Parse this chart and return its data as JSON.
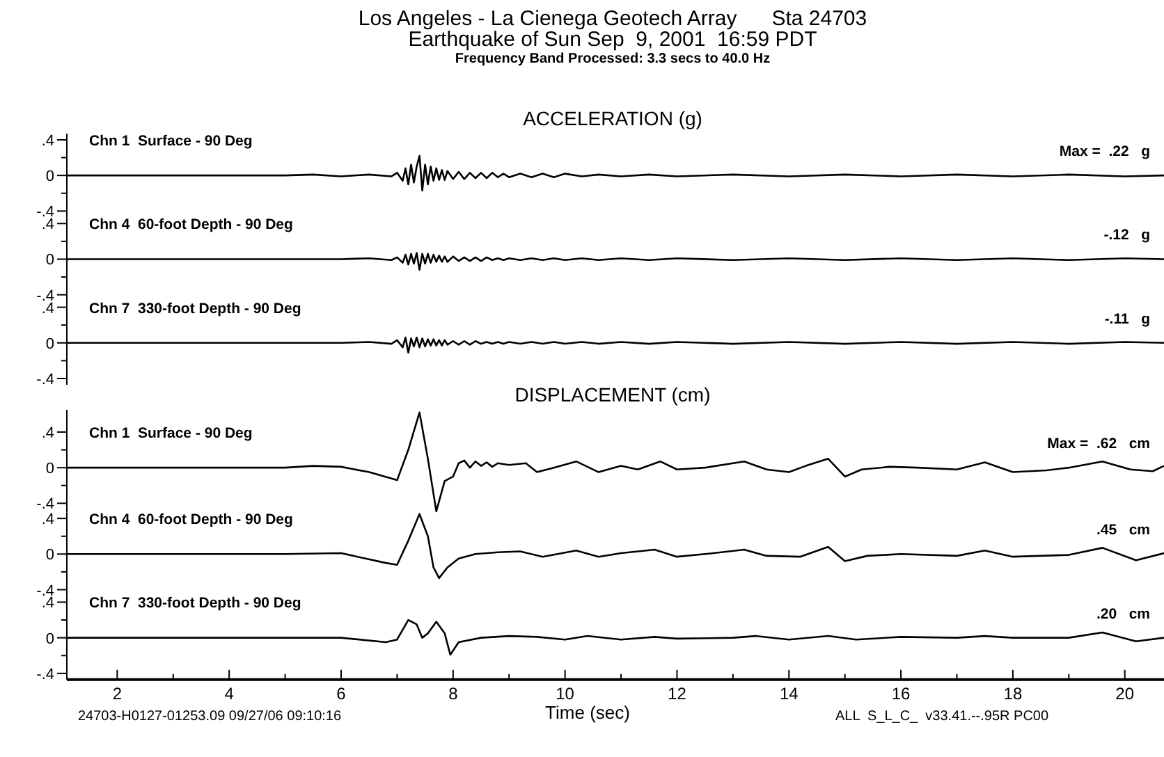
{
  "chart_data": [
    {
      "type": "line",
      "title": "Chn 1  Surface - 90 Deg",
      "subtitle": "ACCELERATION (g)",
      "annotations": [
        "Los Angeles - La Cienega Geotech Array      Sta 24703",
        "Earthquake of Sun Sep  9, 2001  16:59 PDT",
        "Frequency Band Processed: 3.3 secs to 40.0 Hz",
        "Max =  .22   g"
      ],
      "tick_labels": "y",
      "xlim": [
        1.1,
        20.7
      ],
      "ylim": [
        -0.47,
        0.47
      ],
      "yticks": [
        {
          "value": 0.4,
          "label": ".4"
        },
        {
          "value": 0.2,
          "label": null
        },
        {
          "value": 0,
          "label": "0"
        },
        {
          "value": -0.2,
          "label": null
        },
        {
          "value": -0.4,
          "label": "-.4"
        }
      ],
      "x": [
        1.1,
        5.0,
        5.5,
        6.0,
        6.5,
        6.9,
        7.0,
        7.1,
        7.15,
        7.2,
        7.25,
        7.3,
        7.35,
        7.4,
        7.45,
        7.5,
        7.55,
        7.6,
        7.65,
        7.7,
        7.75,
        7.8,
        7.85,
        7.9,
        8.0,
        8.1,
        8.2,
        8.3,
        8.4,
        8.5,
        8.6,
        8.7,
        8.8,
        8.9,
        9.0,
        9.2,
        9.4,
        9.6,
        9.8,
        10.0,
        10.3,
        10.6,
        11,
        11.5,
        12,
        13,
        14,
        15,
        16,
        17,
        18,
        19,
        20,
        20.7
      ],
      "series": [
        {
          "color": "#000000",
          "values": [
            0,
            0,
            0.01,
            -0.01,
            0.01,
            -0.01,
            0.03,
            -0.06,
            0.08,
            -0.1,
            0.12,
            -0.08,
            0.1,
            0.22,
            -0.17,
            0.12,
            -0.1,
            0.1,
            -0.06,
            0.08,
            -0.05,
            0.06,
            -0.05,
            0.05,
            -0.04,
            0.04,
            -0.04,
            0.03,
            -0.03,
            0.03,
            -0.03,
            0.03,
            -0.02,
            0.02,
            -0.02,
            0.02,
            -0.02,
            0.02,
            -0.02,
            0.02,
            -0.01,
            0.01,
            -0.01,
            0.01,
            -0.01,
            0.01,
            -0.01,
            0.01,
            -0.01,
            0.01,
            -0.01,
            0.01,
            -0.01,
            0
          ]
        }
      ]
    },
    {
      "type": "line",
      "title": "Chn 4  60-foot Depth - 90 Deg",
      "annotations": [
        "-.12   g"
      ],
      "tick_labels": "y",
      "xlim": [
        1.1,
        20.7
      ],
      "ylim": [
        -0.47,
        0.47
      ],
      "yticks": [
        {
          "value": 0.4,
          "label": ".4"
        },
        {
          "value": 0.2,
          "label": null
        },
        {
          "value": 0,
          "label": "0"
        },
        {
          "value": -0.2,
          "label": null
        },
        {
          "value": -0.4,
          "label": "-.4"
        }
      ],
      "x": [
        1.1,
        5.0,
        5.5,
        6.0,
        6.5,
        6.9,
        7.0,
        7.1,
        7.15,
        7.2,
        7.25,
        7.3,
        7.35,
        7.4,
        7.45,
        7.5,
        7.55,
        7.6,
        7.65,
        7.7,
        7.75,
        7.8,
        7.85,
        7.9,
        8.0,
        8.1,
        8.2,
        8.3,
        8.4,
        8.5,
        8.6,
        8.7,
        8.8,
        8.9,
        9.0,
        9.2,
        9.4,
        9.6,
        9.8,
        10.0,
        10.3,
        10.6,
        11,
        11.5,
        12,
        13,
        14,
        15,
        16,
        17,
        18,
        19,
        20,
        20.7
      ],
      "series": [
        {
          "color": "#000000",
          "values": [
            0,
            0,
            0,
            0,
            0.01,
            -0.01,
            0.02,
            -0.04,
            0.05,
            -0.06,
            0.06,
            -0.05,
            0.07,
            -0.12,
            0.06,
            -0.05,
            0.06,
            -0.04,
            0.05,
            -0.03,
            0.04,
            -0.03,
            0.03,
            -0.03,
            0.03,
            -0.02,
            0.02,
            -0.02,
            0.02,
            -0.02,
            0.02,
            -0.01,
            0.01,
            -0.01,
            0.01,
            -0.01,
            0.01,
            -0.01,
            0.01,
            -0.01,
            0.01,
            -0.01,
            0.01,
            -0.01,
            0.01,
            -0.01,
            0.01,
            -0.01,
            0.01,
            -0.01,
            0.01,
            -0.01,
            0.01,
            0
          ]
        }
      ]
    },
    {
      "type": "line",
      "title": "Chn 7  330-foot Depth - 90 Deg",
      "annotations": [
        "-.11   g"
      ],
      "tick_labels": "y",
      "xlim": [
        1.1,
        20.7
      ],
      "ylim": [
        -0.47,
        0.47
      ],
      "yticks": [
        {
          "value": 0.4,
          "label": ".4"
        },
        {
          "value": 0.2,
          "label": null
        },
        {
          "value": 0,
          "label": "0"
        },
        {
          "value": -0.2,
          "label": null
        },
        {
          "value": -0.4,
          "label": "-.4"
        }
      ],
      "x": [
        1.1,
        5.0,
        5.5,
        6.0,
        6.5,
        6.9,
        7.0,
        7.1,
        7.15,
        7.2,
        7.25,
        7.3,
        7.35,
        7.4,
        7.45,
        7.5,
        7.55,
        7.6,
        7.65,
        7.7,
        7.75,
        7.8,
        7.85,
        7.9,
        8.0,
        8.1,
        8.2,
        8.3,
        8.4,
        8.5,
        8.6,
        8.7,
        8.8,
        8.9,
        9.0,
        9.2,
        9.4,
        9.6,
        9.8,
        10.0,
        10.3,
        10.6,
        11,
        11.5,
        12,
        13,
        14,
        15,
        16,
        17,
        18,
        19,
        20,
        20.7
      ],
      "series": [
        {
          "color": "#000000",
          "values": [
            0,
            0,
            0,
            0,
            0.01,
            -0.01,
            0.03,
            -0.05,
            0.06,
            -0.11,
            0.05,
            -0.04,
            0.06,
            -0.05,
            0.05,
            -0.04,
            0.04,
            -0.03,
            0.04,
            -0.03,
            0.03,
            -0.03,
            0.03,
            -0.02,
            0.02,
            -0.02,
            0.02,
            -0.02,
            0.02,
            -0.01,
            0.01,
            -0.01,
            0.01,
            -0.01,
            0.01,
            -0.01,
            0.01,
            -0.01,
            0.01,
            -0.01,
            0.01,
            -0.01,
            0.01,
            -0.01,
            0.01,
            -0.01,
            0.01,
            -0.01,
            0.01,
            -0.01,
            0.01,
            -0.01,
            0.01,
            0
          ]
        }
      ]
    },
    {
      "type": "line",
      "title": "Chn 1  Surface - 90 Deg",
      "subtitle": "DISPLACEMENT (cm)",
      "annotations": [
        "Max =  .62   cm"
      ],
      "tick_labels": "y",
      "xlim": [
        1.1,
        20.7
      ],
      "ylim": [
        -0.5,
        0.65
      ],
      "yticks": [
        {
          "value": 0.4,
          "label": ".4"
        },
        {
          "value": 0.2,
          "label": null
        },
        {
          "value": 0,
          "label": "0"
        },
        {
          "value": -0.2,
          "label": null
        },
        {
          "value": -0.4,
          "label": "-.4"
        }
      ],
      "x": [
        1.1,
        5.0,
        5.5,
        6.0,
        6.5,
        7.0,
        7.2,
        7.4,
        7.55,
        7.7,
        7.85,
        8.0,
        8.1,
        8.2,
        8.3,
        8.4,
        8.5,
        8.6,
        8.7,
        8.8,
        9.0,
        9.3,
        9.5,
        9.8,
        10.2,
        10.6,
        11,
        11.3,
        11.7,
        12,
        12.5,
        13.2,
        13.6,
        14,
        14.3,
        14.7,
        15.0,
        15.3,
        15.8,
        16.3,
        17,
        17.5,
        18.0,
        18.6,
        19.0,
        19.6,
        20.1,
        20.5,
        20.7
      ],
      "series": [
        {
          "color": "#000000",
          "values": [
            0,
            0,
            0.02,
            0.01,
            -0.05,
            -0.14,
            0.2,
            0.62,
            0.1,
            -0.49,
            -0.15,
            -0.1,
            0.05,
            0.08,
            0,
            0.07,
            0.02,
            0.06,
            0.01,
            0.05,
            0.03,
            0.05,
            -0.05,
            0,
            0.07,
            -0.05,
            0.02,
            -0.02,
            0.07,
            -0.02,
            0,
            0.07,
            -0.02,
            -0.05,
            0.02,
            0.1,
            -0.1,
            -0.02,
            0.01,
            0,
            -0.02,
            0.06,
            -0.05,
            -0.03,
            0,
            0.07,
            -0.02,
            -0.04,
            0.02
          ]
        }
      ]
    },
    {
      "type": "line",
      "title": "Chn 4  60-foot Depth - 90 Deg",
      "annotations": [
        ".45   cm"
      ],
      "tick_labels": "y",
      "xlim": [
        1.1,
        20.7
      ],
      "ylim": [
        -0.47,
        0.47
      ],
      "yticks": [
        {
          "value": 0.4,
          "label": ".4"
        },
        {
          "value": 0.2,
          "label": null
        },
        {
          "value": 0,
          "label": "0"
        },
        {
          "value": -0.2,
          "label": null
        },
        {
          "value": -0.4,
          "label": "-.4"
        }
      ],
      "x": [
        1.1,
        5,
        6,
        6.8,
        7.0,
        7.2,
        7.4,
        7.55,
        7.65,
        7.75,
        7.9,
        8.1,
        8.4,
        8.8,
        9.2,
        9.6,
        10.2,
        10.6,
        11,
        11.6,
        12,
        12.5,
        13.2,
        13.6,
        14.2,
        14.7,
        15,
        15.4,
        16,
        17,
        17.5,
        18,
        19,
        19.6,
        20.2,
        20.7
      ],
      "series": [
        {
          "color": "#000000",
          "values": [
            0,
            0,
            0.01,
            -0.1,
            -0.12,
            0.15,
            0.45,
            0.2,
            -0.15,
            -0.27,
            -0.15,
            -0.05,
            0,
            0.02,
            0.03,
            -0.03,
            0.04,
            -0.03,
            0.01,
            0.05,
            -0.03,
            0,
            0.05,
            -0.02,
            -0.03,
            0.08,
            -0.08,
            -0.02,
            0,
            -0.02,
            0.04,
            -0.03,
            -0.01,
            0.07,
            -0.07,
            0.01
          ]
        }
      ]
    },
    {
      "type": "line",
      "title": "Chn 7  330-foot Depth - 90 Deg",
      "xlabel": "Time (sec)",
      "annotations": [
        "24703-H0127-01253.09 09/27/06 09:10:16",
        "ALL  S_L_C_  v33.41.--.95R PC00",
        ".20   cm"
      ],
      "xlim": [
        1.1,
        20.7
      ],
      "xticks": [
        2,
        {
          "value": 3,
          "label": null
        },
        4,
        {
          "value": 5,
          "label": null
        },
        6,
        {
          "value": 7,
          "label": null
        },
        8,
        {
          "value": 9,
          "label": null
        },
        10,
        {
          "value": 11,
          "label": null
        },
        12,
        {
          "value": 13,
          "label": null
        },
        14,
        {
          "value": 15,
          "label": null
        },
        16,
        {
          "value": 17,
          "label": null
        },
        18,
        {
          "value": 19,
          "label": null
        },
        20
      ],
      "ylim": [
        -0.47,
        0.47
      ],
      "yticks": [
        {
          "value": 0.4,
          "label": ".4"
        },
        {
          "value": 0.2,
          "label": null
        },
        {
          "value": 0,
          "label": "0"
        },
        {
          "value": -0.2,
          "label": null
        },
        {
          "value": -0.4,
          "label": "-.4"
        }
      ],
      "x": [
        1.1,
        6,
        6.8,
        7.0,
        7.2,
        7.35,
        7.45,
        7.55,
        7.7,
        7.85,
        7.95,
        8.1,
        8.5,
        9.0,
        9.5,
        10,
        10.4,
        11,
        11.6,
        12,
        13,
        13.4,
        14,
        14.7,
        15.2,
        16,
        17,
        17.5,
        18,
        19,
        19.6,
        20.2,
        20.7
      ],
      "series": [
        {
          "color": "#000000",
          "values": [
            0,
            0,
            -0.05,
            -0.02,
            0.2,
            0.15,
            0,
            0.05,
            0.18,
            0.05,
            -0.19,
            -0.05,
            0,
            0.02,
            0.01,
            -0.02,
            0.02,
            -0.02,
            0.01,
            -0.01,
            0,
            0.02,
            -0.02,
            0.02,
            -0.02,
            0.01,
            0,
            0.02,
            0,
            0,
            0.06,
            -0.04,
            0
          ]
        }
      ]
    }
  ]
}
